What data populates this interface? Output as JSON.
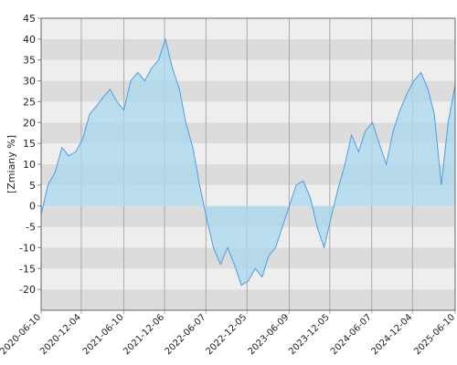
{
  "chart_data": {
    "type": "area",
    "y_label": "[Zmiany %]",
    "x": [
      "2020-06-10",
      "2020-07-10",
      "2020-08-10",
      "2020-09-10",
      "2020-10-10",
      "2020-11-10",
      "2020-12-10",
      "2021-01-10",
      "2021-02-10",
      "2021-03-10",
      "2021-04-10",
      "2021-05-10",
      "2021-06-10",
      "2021-07-10",
      "2021-08-10",
      "2021-09-10",
      "2021-10-10",
      "2021-11-10",
      "2021-12-10",
      "2022-01-10",
      "2022-02-10",
      "2022-03-10",
      "2022-04-10",
      "2022-05-10",
      "2022-06-10",
      "2022-07-10",
      "2022-08-10",
      "2022-09-10",
      "2022-10-10",
      "2022-11-10",
      "2022-12-10",
      "2023-01-10",
      "2023-02-10",
      "2023-03-10",
      "2023-04-10",
      "2023-05-10",
      "2023-06-10",
      "2023-07-10",
      "2023-08-10",
      "2023-09-10",
      "2023-10-10",
      "2023-11-10",
      "2023-12-10",
      "2024-01-10",
      "2024-02-10",
      "2024-03-10",
      "2024-04-10",
      "2024-05-10",
      "2024-06-10",
      "2024-07-10",
      "2024-08-10",
      "2024-09-10",
      "2024-10-10",
      "2024-11-10",
      "2024-12-10",
      "2025-01-10",
      "2025-02-10",
      "2025-03-10",
      "2025-04-10",
      "2025-05-10",
      "2025-06-10"
    ],
    "values": [
      -2,
      5,
      8,
      14,
      12,
      13,
      16,
      22,
      24,
      26,
      28,
      25,
      23,
      30,
      32,
      30,
      33,
      35,
      40,
      33,
      28,
      20,
      14,
      5,
      -3,
      -10,
      -14,
      -10,
      -14,
      -19,
      -18,
      -15,
      -17,
      -12,
      -10,
      -5,
      0,
      5,
      6,
      2,
      -5,
      -10,
      -3,
      4,
      10,
      17,
      13,
      18,
      20,
      15,
      10,
      18,
      23,
      27,
      30,
      32,
      28,
      22,
      5,
      20,
      29
    ],
    "color": "#4a9ee8",
    "fill": "#a9d8ee",
    "xlim": [
      "2020-06-10",
      "2025-06-10"
    ],
    "xticks": [
      "2020-06-10",
      "2020-12-04",
      "2021-06-10",
      "2021-12-06",
      "2022-06-07",
      "2022-12-05",
      "2023-06-09",
      "2023-12-05",
      "2024-06-07",
      "2024-12-04",
      "2025-06-10"
    ],
    "ylim": [
      -25,
      45
    ],
    "yticks": [
      -20,
      -15,
      -10,
      -5,
      0,
      5,
      10,
      15,
      20,
      25,
      30,
      35,
      40,
      45
    ],
    "bands": [
      "#dcdcdc",
      "#eeeeee"
    ]
  }
}
